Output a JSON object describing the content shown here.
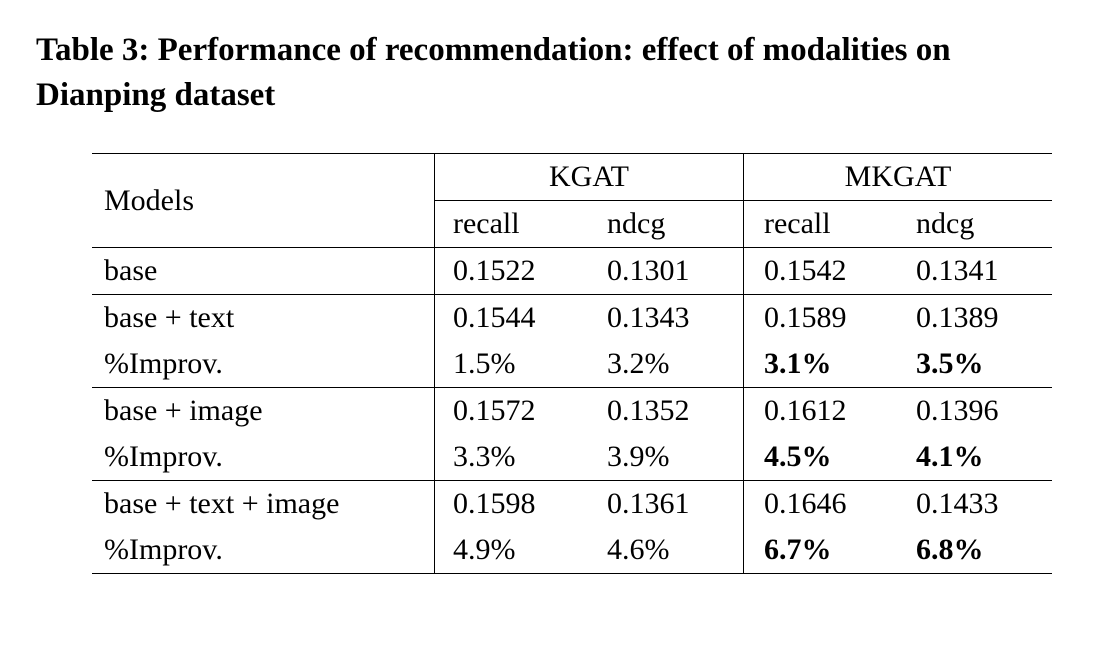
{
  "caption": "Table 3: Performance of recommendation: effect of modalities on Dianping dataset",
  "header": {
    "models_label": "Models",
    "group_kgat": "KGAT",
    "group_mkgat": "MKGAT",
    "sub_recall": "recall",
    "sub_ndcg": "ndcg"
  },
  "rows": [
    {
      "label": "base",
      "kgat_recall": "0.1522",
      "kgat_ndcg": "0.1301",
      "mkgat_recall": "0.1542",
      "mkgat_ndcg": "0.1341",
      "mkgat_bold": false,
      "bottom_border": true
    },
    {
      "label": "base + text",
      "kgat_recall": "0.1544",
      "kgat_ndcg": "0.1343",
      "mkgat_recall": "0.1589",
      "mkgat_ndcg": "0.1389",
      "mkgat_bold": false,
      "bottom_border": false
    },
    {
      "label": "%Improv.",
      "kgat_recall": "1.5%",
      "kgat_ndcg": "3.2%",
      "mkgat_recall": "3.1%",
      "mkgat_ndcg": "3.5%",
      "mkgat_bold": true,
      "bottom_border": true
    },
    {
      "label": "base + image",
      "kgat_recall": "0.1572",
      "kgat_ndcg": "0.1352",
      "mkgat_recall": "0.1612",
      "mkgat_ndcg": "0.1396",
      "mkgat_bold": false,
      "bottom_border": false
    },
    {
      "label": "%Improv.",
      "kgat_recall": "3.3%",
      "kgat_ndcg": "3.9%",
      "mkgat_recall": "4.5%",
      "mkgat_ndcg": "4.1%",
      "mkgat_bold": true,
      "bottom_border": true
    },
    {
      "label": "base + text + image",
      "kgat_recall": "0.1598",
      "kgat_ndcg": "0.1361",
      "mkgat_recall": "0.1646",
      "mkgat_ndcg": "0.1433",
      "mkgat_bold": false,
      "bottom_border": false
    },
    {
      "label": "%Improv.",
      "kgat_recall": "4.9%",
      "kgat_ndcg": "4.6%",
      "mkgat_recall": "6.7%",
      "mkgat_ndcg": "6.8%",
      "mkgat_bold": true,
      "bottom_border": true
    }
  ]
}
